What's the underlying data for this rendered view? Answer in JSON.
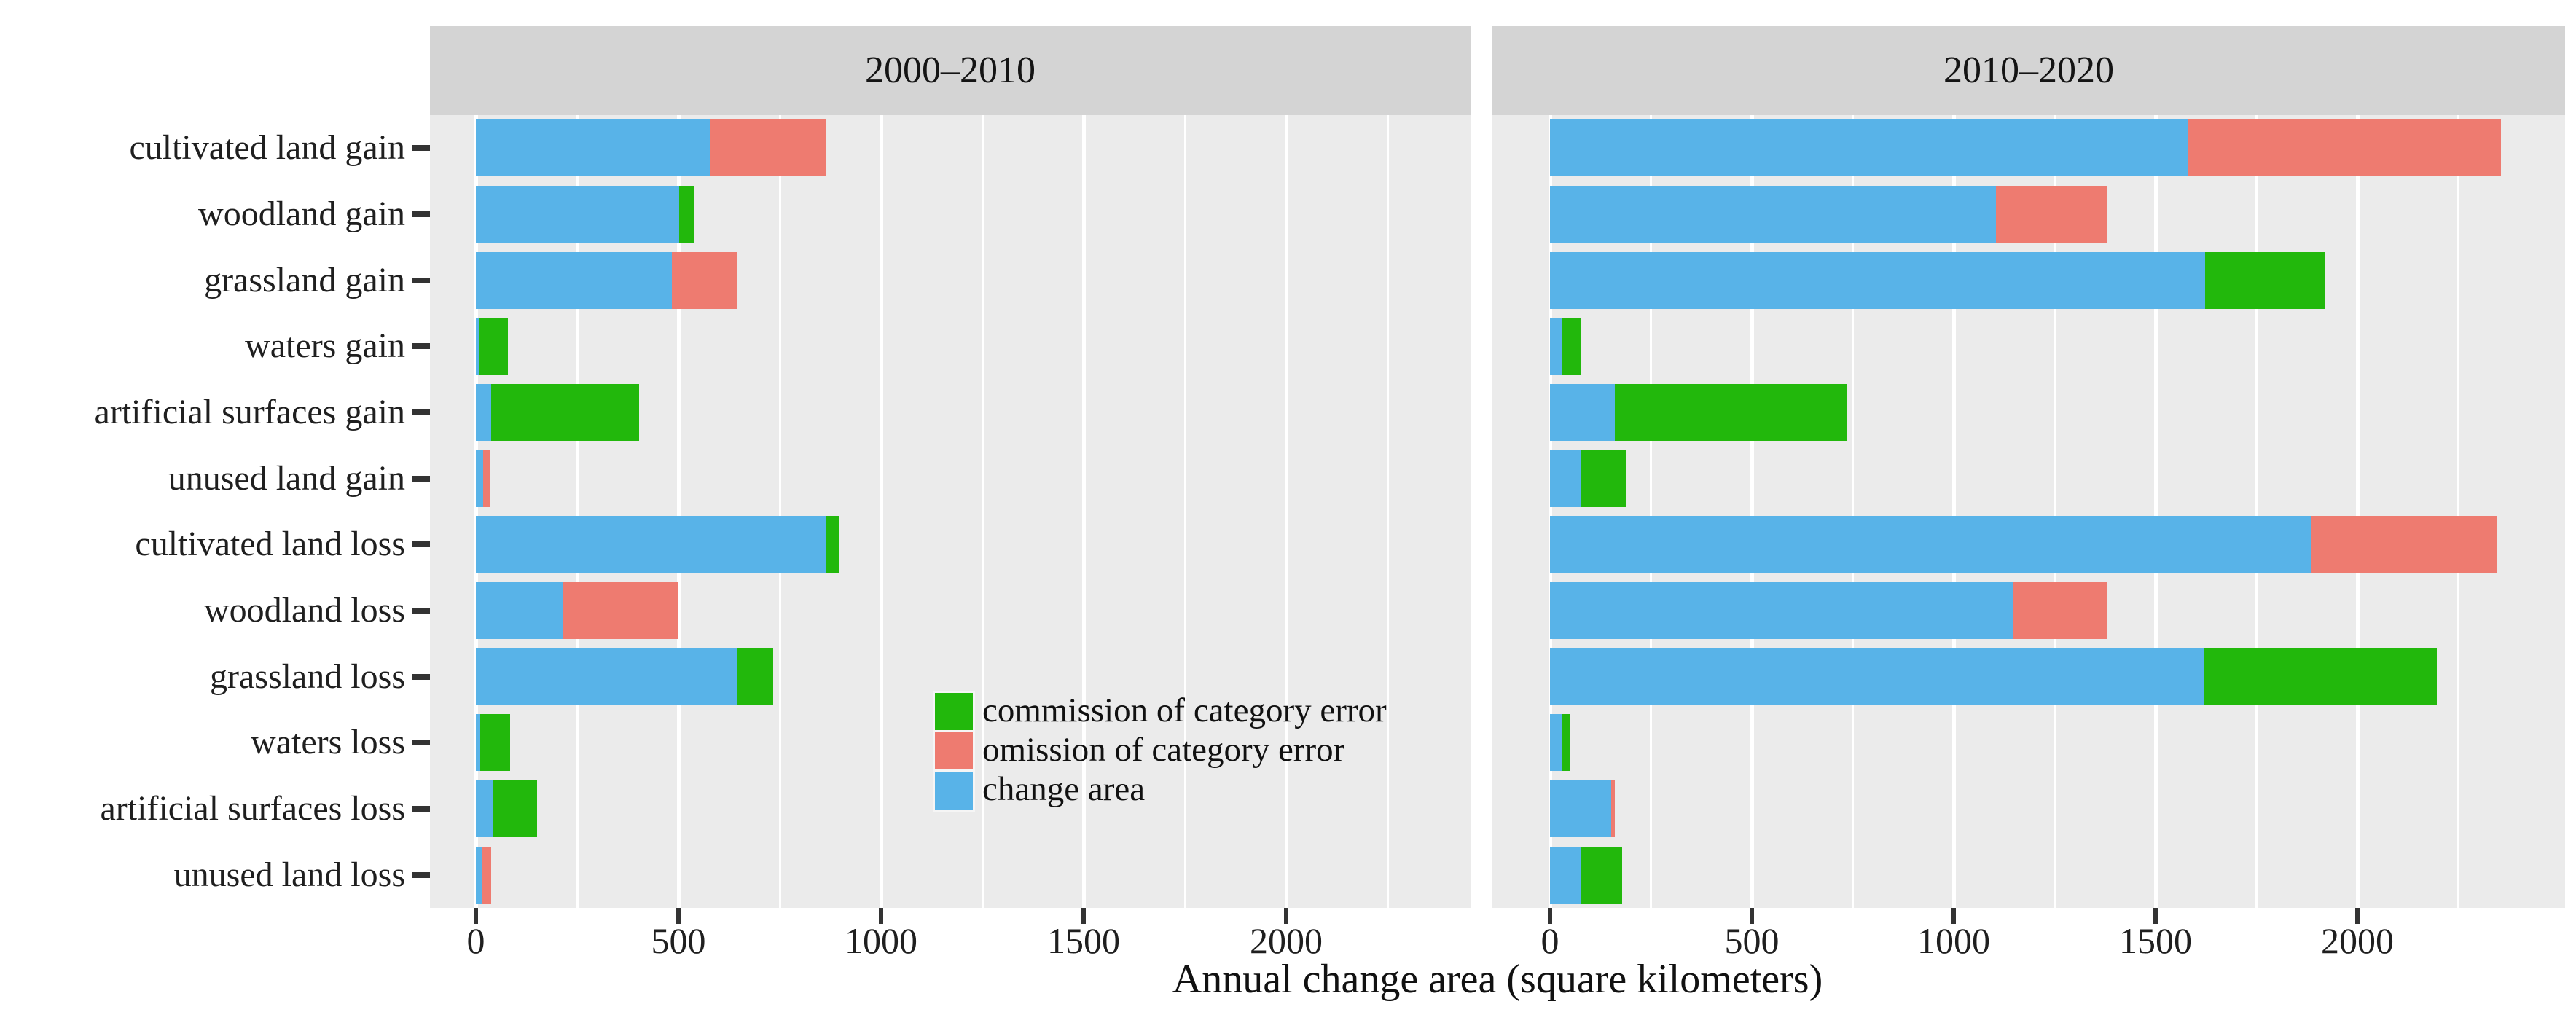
{
  "colors": {
    "commission": "#22B80C",
    "omission": "#EE7B70",
    "change": "#58B3E8",
    "panel_background": "#EBEBEB",
    "strip_background": "#D4D4D4",
    "gridline": "#FFFFFF",
    "tick": "#333333",
    "text": "#1A1A1A"
  },
  "chart_data": {
    "type": "bar",
    "orientation": "horizontal",
    "stacked": true,
    "grid": "on",
    "legend_position": "inside-left-panel",
    "xlabel": "Annual change area (square kilometers)",
    "x_ticks": [
      0,
      500,
      1000,
      1500,
      2000
    ],
    "x_minor_gridlines": [
      250,
      750,
      1250,
      1750,
      2250
    ],
    "xlim": [
      0,
      2460
    ],
    "categories": [
      "cultivated land gain",
      "woodland gain",
      "grassland gain",
      "waters gain",
      "artificial surfaces gain",
      "unused land gain",
      "cultivated land loss",
      "woodland loss",
      "grassland loss",
      "waters loss",
      "artificial surfaces loss",
      "unused land loss"
    ],
    "legend": [
      {
        "series": "commission",
        "label": "commission of category error"
      },
      {
        "series": "omission",
        "label": "omission of category error"
      },
      {
        "series": "change",
        "label": "change area"
      }
    ],
    "facets": [
      {
        "label": "2000–2010",
        "rows": [
          {
            "category": "cultivated land gain",
            "segments": [
              {
                "series": "change",
                "value": 577
              },
              {
                "series": "omission",
                "value": 289
              }
            ]
          },
          {
            "category": "woodland gain",
            "segments": [
              {
                "series": "change",
                "value": 502
              },
              {
                "series": "commission",
                "value": 38
              }
            ]
          },
          {
            "category": "grassland gain",
            "segments": [
              {
                "series": "change",
                "value": 484
              },
              {
                "series": "omission",
                "value": 161
              }
            ]
          },
          {
            "category": "waters gain",
            "segments": [
              {
                "series": "change",
                "value": 8
              },
              {
                "series": "commission",
                "value": 72
              }
            ]
          },
          {
            "category": "artificial surfaces gain",
            "segments": [
              {
                "series": "change",
                "value": 38
              },
              {
                "series": "commission",
                "value": 365
              }
            ]
          },
          {
            "category": "unused land gain",
            "segments": [
              {
                "series": "change",
                "value": 18
              },
              {
                "series": "omission",
                "value": 18
              }
            ]
          },
          {
            "category": "cultivated land loss",
            "segments": [
              {
                "series": "change",
                "value": 865
              },
              {
                "series": "commission",
                "value": 33
              }
            ]
          },
          {
            "category": "woodland loss",
            "segments": [
              {
                "series": "change",
                "value": 215
              },
              {
                "series": "omission",
                "value": 285
              }
            ]
          },
          {
            "category": "grassland loss",
            "segments": [
              {
                "series": "change",
                "value": 645
              },
              {
                "series": "commission",
                "value": 89
              }
            ]
          },
          {
            "category": "waters loss",
            "segments": [
              {
                "series": "change",
                "value": 10
              },
              {
                "series": "commission",
                "value": 75
              }
            ]
          },
          {
            "category": "artificial surfaces loss",
            "segments": [
              {
                "series": "change",
                "value": 41
              },
              {
                "series": "commission",
                "value": 111
              }
            ]
          },
          {
            "category": "unused land loss",
            "segments": [
              {
                "series": "change",
                "value": 15
              },
              {
                "series": "omission",
                "value": 22
              }
            ]
          }
        ]
      },
      {
        "label": "2010–2020",
        "rows": [
          {
            "category": "cultivated land gain",
            "segments": [
              {
                "series": "change",
                "value": 1580
              },
              {
                "series": "omission",
                "value": 775
              }
            ]
          },
          {
            "category": "woodland gain",
            "segments": [
              {
                "series": "change",
                "value": 1105
              },
              {
                "series": "omission",
                "value": 275
              }
            ]
          },
          {
            "category": "grassland gain",
            "segments": [
              {
                "series": "change",
                "value": 1623
              },
              {
                "series": "commission",
                "value": 297
              }
            ]
          },
          {
            "category": "waters gain",
            "segments": [
              {
                "series": "change",
                "value": 29
              },
              {
                "series": "commission",
                "value": 48
              }
            ]
          },
          {
            "category": "artificial surfaces gain",
            "segments": [
              {
                "series": "change",
                "value": 160
              },
              {
                "series": "commission",
                "value": 577
              }
            ]
          },
          {
            "category": "unused land gain",
            "segments": [
              {
                "series": "change",
                "value": 76
              },
              {
                "series": "commission",
                "value": 113
              }
            ]
          },
          {
            "category": "cultivated land loss",
            "segments": [
              {
                "series": "change",
                "value": 1885
              },
              {
                "series": "omission",
                "value": 462
              }
            ]
          },
          {
            "category": "woodland loss",
            "segments": [
              {
                "series": "change",
                "value": 1146
              },
              {
                "series": "omission",
                "value": 235
              }
            ]
          },
          {
            "category": "grassland loss",
            "segments": [
              {
                "series": "change",
                "value": 1620
              },
              {
                "series": "commission",
                "value": 576
              }
            ]
          },
          {
            "category": "waters loss",
            "segments": [
              {
                "series": "change",
                "value": 28
              },
              {
                "series": "commission",
                "value": 20
              }
            ]
          },
          {
            "category": "artificial surfaces loss",
            "segments": [
              {
                "series": "change",
                "value": 152
              },
              {
                "series": "omission",
                "value": 9
              }
            ]
          },
          {
            "category": "unused land loss",
            "segments": [
              {
                "series": "change",
                "value": 76
              },
              {
                "series": "commission",
                "value": 102
              }
            ]
          }
        ]
      }
    ]
  }
}
